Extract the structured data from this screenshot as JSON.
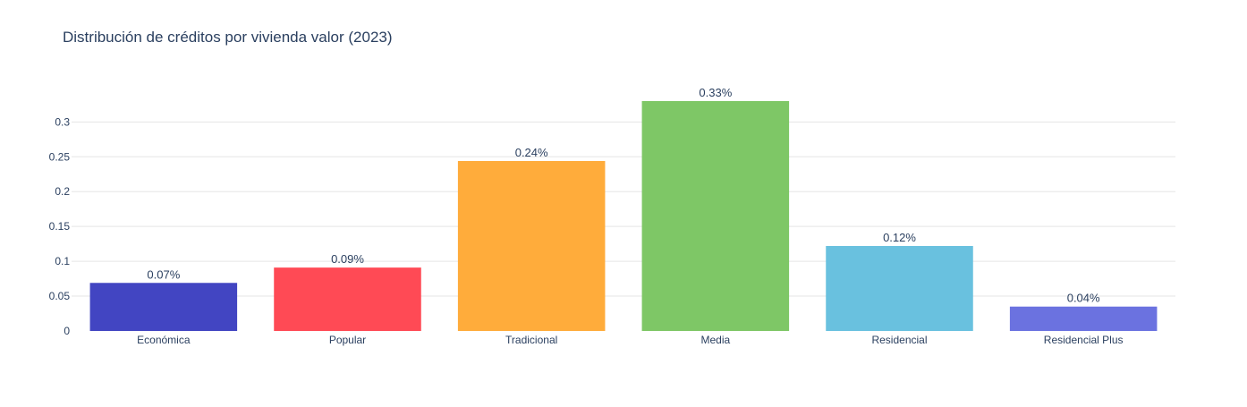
{
  "chart_data": {
    "type": "bar",
    "title": "Distribución de créditos por vivienda valor (2023)",
    "xlabel": "",
    "ylabel": "",
    "categories": [
      "Económica",
      "Popular",
      "Tradicional",
      "Media",
      "Residencial",
      "Residencial Plus"
    ],
    "values": [
      0.069,
      0.091,
      0.244,
      0.33,
      0.122,
      0.035
    ],
    "data_labels": [
      "0.07%",
      "0.09%",
      "0.24%",
      "0.33%",
      "0.12%",
      "0.04%"
    ],
    "colors": [
      "#4245c2",
      "#ff4a55",
      "#ffac3b",
      "#7ec766",
      "#69c1df",
      "#6b72e0"
    ],
    "ylim": [
      0,
      0.33
    ],
    "yticks": [
      0,
      0.05,
      0.1,
      0.15,
      0.2,
      0.25,
      0.3
    ],
    "ytick_labels": [
      "0",
      "0.05",
      "0.1",
      "0.15",
      "0.2",
      "0.25",
      "0.3"
    ],
    "grid": true,
    "legend": false
  }
}
